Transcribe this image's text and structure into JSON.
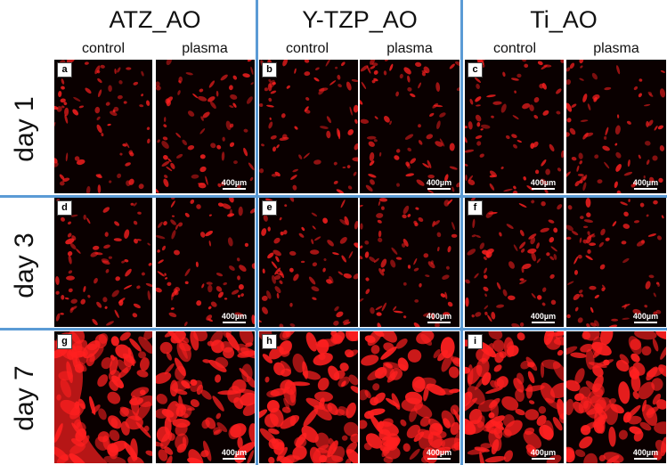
{
  "groups": [
    {
      "title": "ATZ_AO",
      "control_label": "control",
      "plasma_label": "plasma"
    },
    {
      "title": "Y-TZP_AO",
      "control_label": "control",
      "plasma_label": "plasma"
    },
    {
      "title": "Ti_AO",
      "control_label": "control",
      "plasma_label": "plasma"
    }
  ],
  "days": [
    "day 1",
    "day 3",
    "day 7"
  ],
  "panel_letters": [
    "a",
    "b",
    "c",
    "d",
    "e",
    "f",
    "g",
    "h",
    "i"
  ],
  "scale_bar": "400µm",
  "colors": {
    "cell_stain": "#ff2020",
    "background": "#0a0000",
    "divider": "#5b9bd5"
  }
}
